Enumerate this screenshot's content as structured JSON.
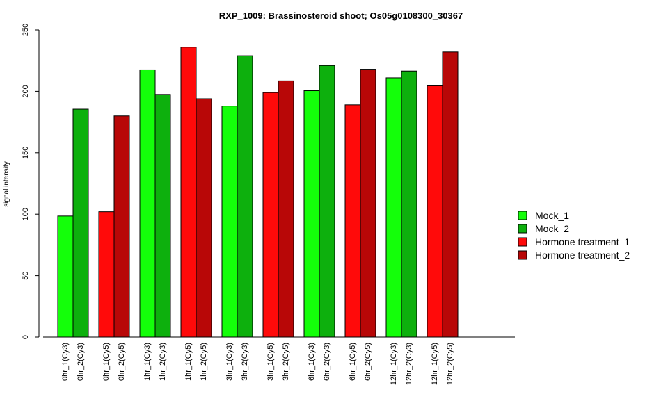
{
  "chart_data": {
    "type": "bar",
    "title": "RXP_1009: Brassinosteroid shoot; Os05g0108300_30367",
    "ylabel": "signal intensity",
    "xlabel": "",
    "ylim": [
      0,
      250
    ],
    "yticks": [
      0,
      50,
      100,
      150,
      200,
      250
    ],
    "grid": false,
    "legend_position": "right",
    "groups": [
      {
        "bars": [
          {
            "label": "0hr_1(Cy3)",
            "value": 98.5,
            "series": 0
          },
          {
            "label": "0hr_2(Cy3)",
            "value": 185.5,
            "series": 1
          }
        ]
      },
      {
        "bars": [
          {
            "label": "0hr_1(Cy5)",
            "value": 102,
            "series": 2
          },
          {
            "label": "0hr_2(Cy5)",
            "value": 180,
            "series": 3
          }
        ]
      },
      {
        "bars": [
          {
            "label": "1hr_1(Cy3)",
            "value": 217.5,
            "series": 0
          },
          {
            "label": "1hr_2(Cy3)",
            "value": 197.5,
            "series": 1
          }
        ]
      },
      {
        "bars": [
          {
            "label": "1hr_1(Cy5)",
            "value": 236,
            "series": 2
          },
          {
            "label": "1hr_2(Cy5)",
            "value": 194,
            "series": 3
          }
        ]
      },
      {
        "bars": [
          {
            "label": "3hr_1(Cy3)",
            "value": 188,
            "series": 0
          },
          {
            "label": "3hr_2(Cy3)",
            "value": 229,
            "series": 1
          }
        ]
      },
      {
        "bars": [
          {
            "label": "3hr_1(Cy5)",
            "value": 199,
            "series": 2
          },
          {
            "label": "3hr_2(Cy5)",
            "value": 208.5,
            "series": 3
          }
        ]
      },
      {
        "bars": [
          {
            "label": "6hr_1(Cy3)",
            "value": 200.5,
            "series": 0
          },
          {
            "label": "6hr_2(Cy3)",
            "value": 221,
            "series": 1
          }
        ]
      },
      {
        "bars": [
          {
            "label": "6hr_1(Cy5)",
            "value": 189,
            "series": 2
          },
          {
            "label": "6hr_2(Cy5)",
            "value": 218,
            "series": 3
          }
        ]
      },
      {
        "bars": [
          {
            "label": "12hr_1(Cy3)",
            "value": 211,
            "series": 0
          },
          {
            "label": "12hr_2(Cy3)",
            "value": 216.5,
            "series": 1
          }
        ]
      },
      {
        "bars": [
          {
            "label": "12hr_1(Cy5)",
            "value": 204.5,
            "series": 2
          },
          {
            "label": "12hr_2(Cy5)",
            "value": 232,
            "series": 3
          }
        ]
      }
    ],
    "series": [
      {
        "name": "Mock_1",
        "color": "#14ff0a"
      },
      {
        "name": "Mock_2",
        "color": "#0db00d"
      },
      {
        "name": "Hormone treatment_1",
        "color": "#ff0a0a"
      },
      {
        "name": "Hormone treatment_2",
        "color": "#b80707"
      }
    ]
  }
}
